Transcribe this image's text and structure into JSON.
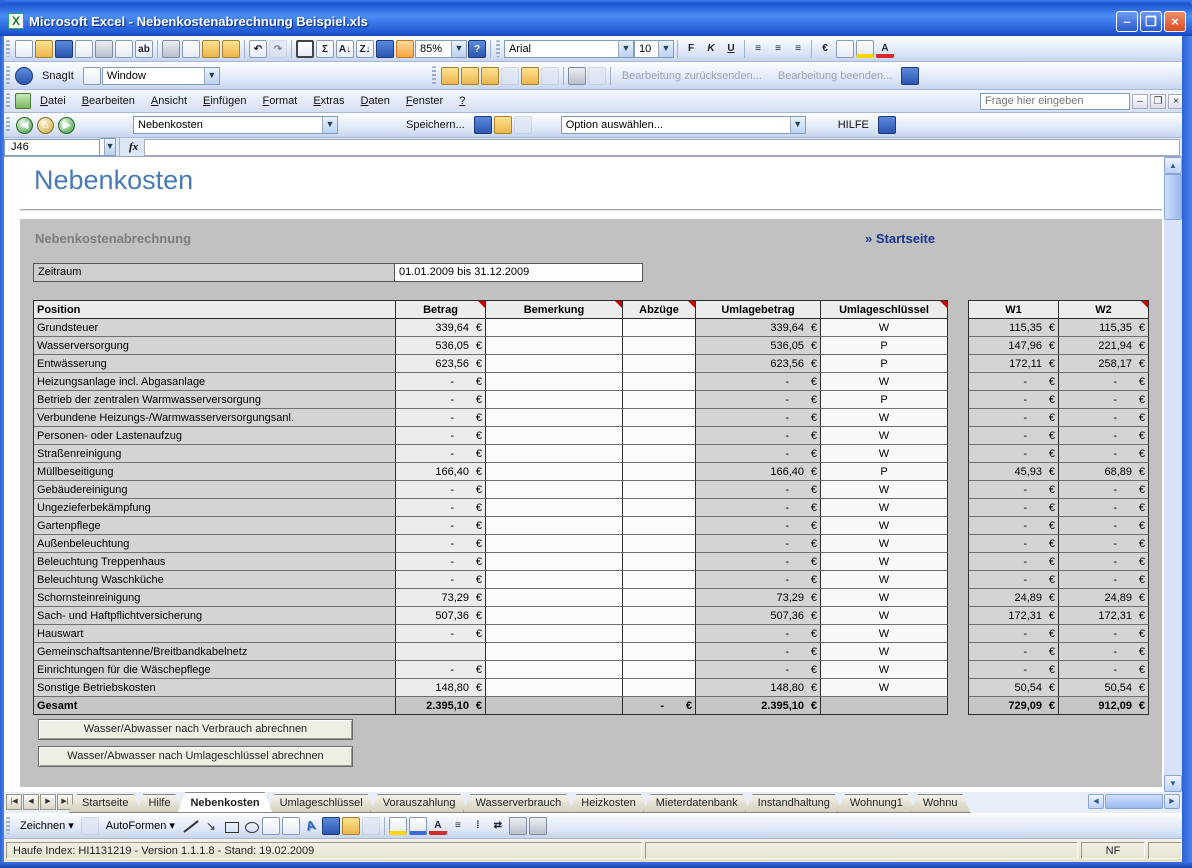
{
  "window": {
    "title": "Microsoft Excel - Nebenkostenabrechnung Beispiel.xls"
  },
  "toolbar1": {
    "zoom_value": "85%",
    "font_name": "Arial",
    "font_size": "10",
    "format_letters": [
      "F",
      "K",
      "U"
    ],
    "euro_label": "€",
    "sigma_label": "Σ",
    "help_label": "?"
  },
  "snagit": {
    "label": "SnagIt",
    "mode": "Window",
    "review_buttons": [
      "Bearbeitung zurücksenden...",
      "Bearbeitung beenden..."
    ]
  },
  "menubar": {
    "items": [
      "Datei",
      "Bearbeiten",
      "Ansicht",
      "Einfügen",
      "Format",
      "Extras",
      "Daten",
      "Fenster",
      "?"
    ],
    "question_placeholder": "Frage hier eingeben"
  },
  "custom_toolbar": {
    "sheet_select": "Nebenkosten",
    "save_label": "Speichern...",
    "option_select": "Option auswählen...",
    "help_label": "HILFE"
  },
  "formula_bar": {
    "cell_ref": "J46",
    "fx_label": "fx"
  },
  "page": {
    "title": "Nebenkosten",
    "section_title": "Nebenkostenabrechnung",
    "startseite_link": "» Startseite",
    "zeitraum_label": "Zeitraum",
    "zeitraum_value": "01.01.2009 bis 31.12.2009"
  },
  "table": {
    "headers": [
      {
        "label": "Position",
        "comment": false
      },
      {
        "label": "Betrag",
        "comment": true
      },
      {
        "label": "Bemerkung",
        "comment": true
      },
      {
        "label": "Abzüge",
        "comment": true
      },
      {
        "label": "Umlagebetrag",
        "comment": false
      },
      {
        "label": "Umlageschlüssel",
        "comment": true
      }
    ],
    "w_headers": [
      {
        "label": "W1",
        "comment": false
      },
      {
        "label": "W2",
        "comment": true
      }
    ],
    "rows": [
      [
        "Grundsteuer",
        "339,64 €",
        "",
        "",
        "339,64 €",
        "W",
        "115,35 €",
        "115,35 €"
      ],
      [
        "Wasserversorgung",
        "536,05 €",
        "",
        "",
        "536,05 €",
        "P",
        "147,96 €",
        "221,94 €"
      ],
      [
        "Entwässerung",
        "623,56 €",
        "",
        "",
        "623,56 €",
        "P",
        "172,11 €",
        "258,17 €"
      ],
      [
        "Heizungsanlage incl. Abgasanlage",
        "- €",
        "",
        "",
        "- €",
        "W",
        "- €",
        "- €"
      ],
      [
        "Betrieb der zentralen Warmwasserversorgung",
        "- €",
        "",
        "",
        "- €",
        "P",
        "- €",
        "- €"
      ],
      [
        "Verbundene Heizungs-/Warmwasserversorgungsanl.",
        "- €",
        "",
        "",
        "- €",
        "W",
        "- €",
        "- €"
      ],
      [
        "Personen- oder Lastenaufzug",
        "- €",
        "",
        "",
        "- €",
        "W",
        "- €",
        "- €"
      ],
      [
        "Straßenreinigung",
        "- €",
        "",
        "",
        "- €",
        "W",
        "- €",
        "- €"
      ],
      [
        "Müllbeseitigung",
        "166,40 €",
        "",
        "",
        "166,40 €",
        "P",
        "45,93 €",
        "68,89 €"
      ],
      [
        "Gebäudereinigung",
        "- €",
        "",
        "",
        "- €",
        "W",
        "- €",
        "- €"
      ],
      [
        "Ungezieferbekämpfung",
        "- €",
        "",
        "",
        "- €",
        "W",
        "- €",
        "- €"
      ],
      [
        "Gartenpflege",
        "- €",
        "",
        "",
        "- €",
        "W",
        "- €",
        "- €"
      ],
      [
        "Außenbeleuchtung",
        "- €",
        "",
        "",
        "- €",
        "W",
        "- €",
        "- €"
      ],
      [
        "Beleuchtung Treppenhaus",
        "- €",
        "",
        "",
        "- €",
        "W",
        "- €",
        "- €"
      ],
      [
        "Beleuchtung Waschküche",
        "- €",
        "",
        "",
        "- €",
        "W",
        "- €",
        "- €"
      ],
      [
        "Schornsteinreinigung",
        "73,29 €",
        "",
        "",
        "73,29 €",
        "W",
        "24,89 €",
        "24,89 €"
      ],
      [
        "Sach- und Haftpflichtversicherung",
        "507,36 €",
        "",
        "",
        "507,36 €",
        "W",
        "172,31 €",
        "172,31 €"
      ],
      [
        "Hauswart",
        "- €",
        "",
        "",
        "- €",
        "W",
        "- €",
        "- €"
      ],
      [
        "Gemeinschaftsantenne/Breitbandkabelnetz",
        "",
        "",
        "",
        "- €",
        "W",
        "- €",
        "- €"
      ],
      [
        "Einrichtungen für die Wäschepflege",
        "- €",
        "",
        "",
        "- €",
        "W",
        "- €",
        "- €"
      ],
      [
        "Sonstige Betriebskosten",
        "148,80 €",
        "",
        "",
        "148,80 €",
        "W",
        "50,54 €",
        "50,54 €"
      ],
      [
        "Gesamt",
        "2.395,10 €",
        "",
        "- €",
        "2.395,10 €",
        "",
        "729,09 €",
        "912,09 €"
      ]
    ]
  },
  "buttons": [
    "Wasser/Abwasser nach Verbrauch abrechnen",
    "Wasser/Abwasser nach Umlageschlüssel abrechnen"
  ],
  "sheet_tabs": {
    "items": [
      "Startseite",
      "Hilfe",
      "Nebenkosten",
      "Umlageschlüssel",
      "Vorauszahlung",
      "Wasserverbrauch",
      "Heizkosten",
      "Mieterdatenbank",
      "Instandhaltung",
      "Wohnung1",
      "Wohnu"
    ],
    "active": "Nebenkosten"
  },
  "drawing_toolbar": {
    "zeichnen_label": "Zeichnen",
    "autoformen_label": "AutoFormen"
  },
  "status_bar": {
    "left": "Haufe Index: HI1131219 - Version 1.1.1.8 - Stand: 19.02.2009",
    "numlock": "NF"
  }
}
